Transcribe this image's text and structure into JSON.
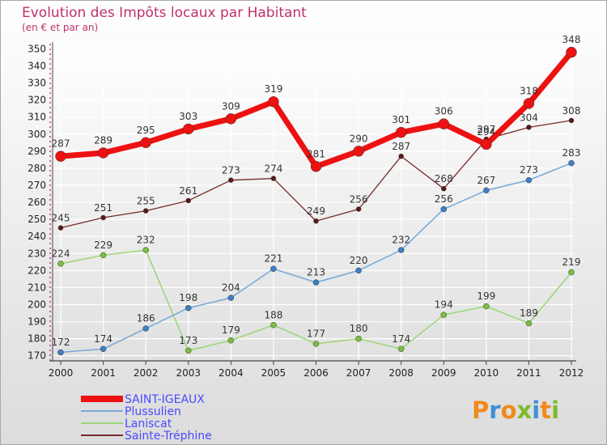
{
  "header": {
    "title": "Evolution des Impôts locaux par Habitant",
    "subtitle": "(en € et par an)"
  },
  "logo": {
    "letters": [
      "P",
      "r",
      "o",
      "x",
      "i",
      "t",
      "i"
    ],
    "colors": [
      "#f08a1c",
      "#3f8fd4",
      "#f08a1c",
      "#7dbb2a",
      "#3f8fd4",
      "#f08a1c",
      "#7dbb2a"
    ]
  },
  "colors": {
    "background_top": "#ffffff",
    "background_bottom": "#dcdcdc",
    "plot_top": "#ffffff",
    "plot_bottom": "#e0e0e0",
    "grid": "#ffffff",
    "title": "#c0306a",
    "legend_text": "#4a4aff"
  },
  "chart_data": {
    "type": "line",
    "title": "Evolution des Impôts locaux par Habitant",
    "subtitle": "(en € et par an)",
    "x": [
      2000,
      2001,
      2002,
      2003,
      2004,
      2005,
      2006,
      2007,
      2008,
      2009,
      2010,
      2011,
      2012
    ],
    "ylim": [
      167,
      354
    ],
    "yticks": [
      170,
      180,
      190,
      200,
      210,
      220,
      230,
      240,
      250,
      260,
      270,
      280,
      290,
      300,
      310,
      320,
      330,
      340,
      350
    ],
    "grid": true,
    "legend_position": "bottom-left",
    "series": [
      {
        "name": "Sainte-Tréphine",
        "color": "#7a2a2a",
        "marker": "#5a1a1a",
        "width": 1.3,
        "radius": 3,
        "values": [
          245,
          251,
          255,
          261,
          273,
          274,
          249,
          256,
          287,
          268,
          297,
          304,
          308
        ]
      },
      {
        "name": "Laniscat",
        "color": "#9fd67a",
        "marker": "#7bbf3f",
        "width": 1.6,
        "radius": 3.5,
        "values": [
          224,
          229,
          232,
          173,
          179,
          188,
          177,
          180,
          174,
          194,
          199,
          189,
          219
        ]
      },
      {
        "name": "Plussulien",
        "color": "#7aaad8",
        "marker": "#3f7fc4",
        "width": 1.6,
        "radius": 3.5,
        "values": [
          172,
          174,
          186,
          198,
          204,
          221,
          213,
          220,
          232,
          256,
          267,
          273,
          283
        ]
      },
      {
        "name": "SAINT-IGEAUX",
        "color": "#ee1111",
        "marker": "#ee1111",
        "width": 7,
        "radius": 6.5,
        "values": [
          287,
          289,
          295,
          303,
          309,
          319,
          281,
          290,
          301,
          306,
          294,
          318,
          348
        ]
      }
    ],
    "legend_order": [
      "SAINT-IGEAUX",
      "Plussulien",
      "Laniscat",
      "Sainte-Tréphine"
    ]
  }
}
